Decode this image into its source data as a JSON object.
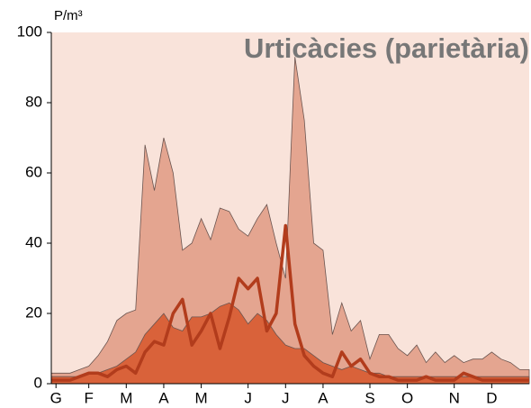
{
  "chart_data": {
    "type": "area",
    "title": "Urticàcies (parietària)",
    "y_unit": "P/m³",
    "x": [
      0,
      1,
      2,
      3,
      4,
      5,
      6,
      7,
      8,
      9,
      10,
      11,
      12,
      13,
      14,
      15,
      16,
      17,
      18,
      19,
      20,
      21,
      22,
      23,
      24,
      25,
      26,
      27,
      28,
      29,
      30,
      31,
      32,
      33,
      34,
      35,
      36,
      37,
      38,
      39,
      40,
      41,
      42,
      43,
      44,
      45,
      46,
      47,
      48,
      49,
      50,
      51
    ],
    "xlim": [
      0,
      51
    ],
    "xticks": [
      {
        "value": 0.5,
        "label": "G"
      },
      {
        "value": 4,
        "label": "F"
      },
      {
        "value": 8,
        "label": "M"
      },
      {
        "value": 12,
        "label": "A"
      },
      {
        "value": 16,
        "label": "M"
      },
      {
        "value": 21,
        "label": "J"
      },
      {
        "value": 25,
        "label": "J"
      },
      {
        "value": 29,
        "label": "A"
      },
      {
        "value": 34,
        "label": "S"
      },
      {
        "value": 38,
        "label": "O"
      },
      {
        "value": 43,
        "label": "N"
      },
      {
        "value": 47,
        "label": "D"
      }
    ],
    "ylim": [
      0,
      100
    ],
    "yticks": [
      0,
      20,
      40,
      60,
      80,
      100
    ],
    "background": "#f9e3da",
    "series": [
      {
        "type": "area",
        "color": "#e4a590",
        "values": [
          3,
          3,
          3,
          4,
          5,
          8,
          12,
          18,
          20,
          21,
          68,
          55,
          70,
          60,
          38,
          40,
          47,
          41,
          50,
          49,
          44,
          42,
          47,
          51,
          40,
          30,
          93,
          75,
          40,
          38,
          14,
          23,
          15,
          18,
          7,
          14,
          14,
          10,
          8,
          11,
          6,
          9,
          6,
          8,
          6,
          7,
          7,
          9,
          7,
          6,
          4,
          4
        ]
      },
      {
        "type": "area",
        "color": "#d9623a",
        "values": [
          2,
          2,
          2,
          2,
          3,
          3,
          4,
          5,
          7,
          9,
          14,
          17,
          20,
          16,
          15,
          19,
          19,
          20,
          22,
          23,
          21,
          17,
          20,
          18,
          14,
          11,
          10,
          10,
          8,
          6,
          5,
          4,
          5,
          4,
          3,
          3,
          2,
          2,
          2,
          2,
          2,
          2,
          2,
          2,
          2,
          2,
          2,
          2,
          2,
          2,
          2,
          2
        ]
      },
      {
        "type": "line",
        "color": "#b23c1c",
        "values": [
          1,
          1,
          1,
          2,
          3,
          3,
          2,
          4,
          5,
          3,
          9,
          12,
          11,
          20,
          24,
          11,
          15,
          20,
          10,
          19,
          30,
          27,
          30,
          15,
          20,
          45,
          17,
          8,
          5,
          3,
          2,
          9,
          5,
          7,
          3,
          2,
          2,
          1,
          1,
          1,
          2,
          1,
          1,
          1,
          3,
          2,
          1,
          1,
          1,
          1,
          1,
          1
        ]
      }
    ]
  }
}
